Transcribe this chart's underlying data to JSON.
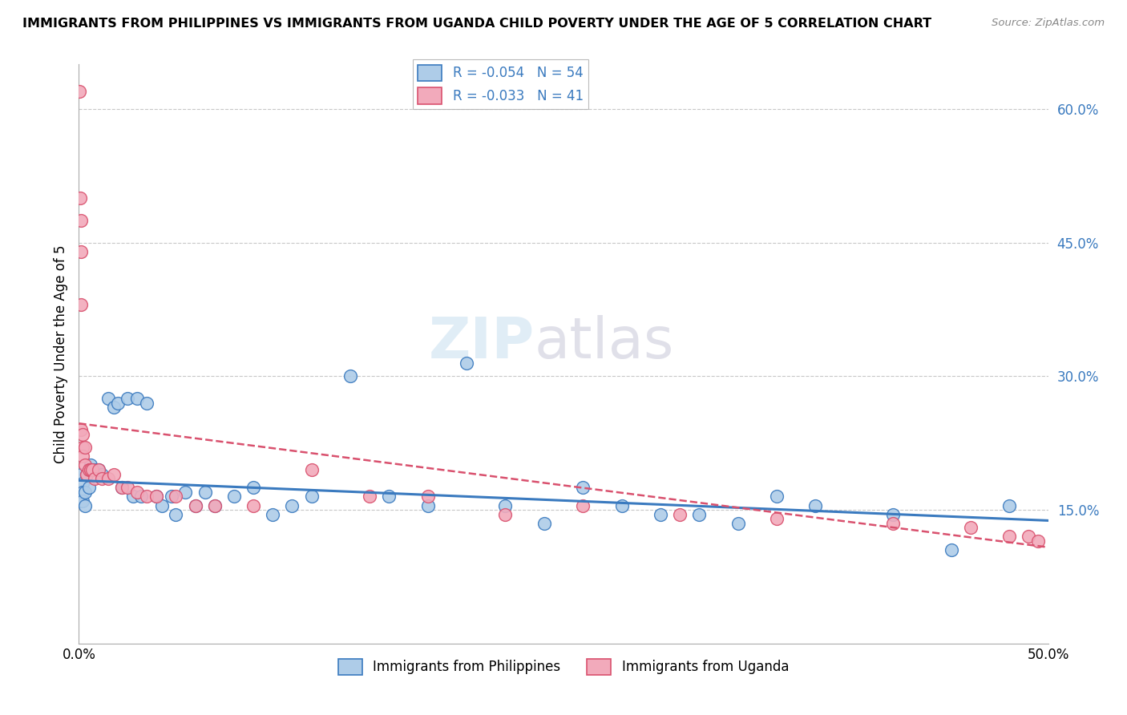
{
  "title": "IMMIGRANTS FROM PHILIPPINES VS IMMIGRANTS FROM UGANDA CHILD POVERTY UNDER THE AGE OF 5 CORRELATION CHART",
  "source": "Source: ZipAtlas.com",
  "ylabel": "Child Poverty Under the Age of 5",
  "legend_label1": "Immigrants from Philippines",
  "legend_label2": "Immigrants from Uganda",
  "r1": "-0.054",
  "n1": "54",
  "r2": "-0.033",
  "n2": "41",
  "color_philippines": "#aecce8",
  "color_uganda": "#f2aabb",
  "line_color_philippines": "#3a7abf",
  "line_color_uganda": "#d9516e",
  "philippines_x": [
    0.001,
    0.001,
    0.001,
    0.002,
    0.002,
    0.002,
    0.003,
    0.003,
    0.004,
    0.005,
    0.005,
    0.006,
    0.007,
    0.008,
    0.01,
    0.012,
    0.015,
    0.018,
    0.02,
    0.022,
    0.025,
    0.028,
    0.03,
    0.032,
    0.035,
    0.04,
    0.043,
    0.048,
    0.05,
    0.055,
    0.06,
    0.065,
    0.07,
    0.08,
    0.09,
    0.1,
    0.11,
    0.12,
    0.14,
    0.16,
    0.18,
    0.2,
    0.22,
    0.24,
    0.26,
    0.28,
    0.3,
    0.32,
    0.34,
    0.36,
    0.38,
    0.42,
    0.45,
    0.48
  ],
  "philippines_y": [
    0.19,
    0.17,
    0.16,
    0.18,
    0.17,
    0.16,
    0.17,
    0.155,
    0.19,
    0.195,
    0.175,
    0.2,
    0.195,
    0.195,
    0.195,
    0.19,
    0.275,
    0.265,
    0.27,
    0.175,
    0.275,
    0.165,
    0.275,
    0.165,
    0.27,
    0.165,
    0.155,
    0.165,
    0.145,
    0.17,
    0.155,
    0.17,
    0.155,
    0.165,
    0.175,
    0.145,
    0.155,
    0.165,
    0.3,
    0.165,
    0.155,
    0.315,
    0.155,
    0.135,
    0.175,
    0.155,
    0.145,
    0.145,
    0.135,
    0.165,
    0.155,
    0.145,
    0.105,
    0.155
  ],
  "uganda_x": [
    0.0003,
    0.0005,
    0.001,
    0.001,
    0.001,
    0.001,
    0.002,
    0.002,
    0.002,
    0.003,
    0.003,
    0.004,
    0.005,
    0.006,
    0.007,
    0.008,
    0.01,
    0.012,
    0.015,
    0.018,
    0.022,
    0.025,
    0.03,
    0.035,
    0.04,
    0.05,
    0.06,
    0.07,
    0.09,
    0.12,
    0.15,
    0.18,
    0.22,
    0.26,
    0.31,
    0.36,
    0.42,
    0.46,
    0.48,
    0.49,
    0.495
  ],
  "uganda_y": [
    0.62,
    0.5,
    0.475,
    0.44,
    0.38,
    0.24,
    0.235,
    0.22,
    0.21,
    0.22,
    0.2,
    0.19,
    0.195,
    0.195,
    0.195,
    0.185,
    0.195,
    0.185,
    0.185,
    0.19,
    0.175,
    0.175,
    0.17,
    0.165,
    0.165,
    0.165,
    0.155,
    0.155,
    0.155,
    0.195,
    0.165,
    0.165,
    0.145,
    0.155,
    0.145,
    0.14,
    0.135,
    0.13,
    0.12,
    0.12,
    0.115
  ],
  "phil_line_x0": 0.0,
  "phil_line_y0": 0.183,
  "phil_line_x1": 0.5,
  "phil_line_y1": 0.138,
  "ug_line_x0": 0.0,
  "ug_line_y0": 0.247,
  "ug_line_x1": 0.5,
  "ug_line_y1": 0.108,
  "xlim": [
    0.0,
    0.5
  ],
  "ylim": [
    0.0,
    0.65
  ],
  "ytick_vals": [
    0.15,
    0.3,
    0.45,
    0.6
  ],
  "ytick_labels": [
    "15.0%",
    "30.0%",
    "45.0%",
    "60.0%"
  ]
}
